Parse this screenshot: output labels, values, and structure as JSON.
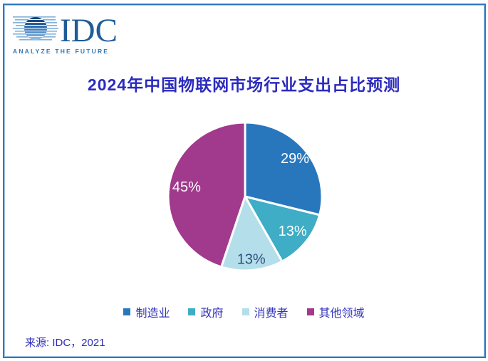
{
  "page": {
    "background": "#ffffff",
    "border_color": "#2E77BE"
  },
  "logo": {
    "name": "IDC",
    "tagline": "ANALYZE THE FUTURE",
    "text_color": "#1F5C99",
    "tagline_color": "#2E79B8"
  },
  "title": {
    "text": "2024年中国物联网市场行业支出占比预测",
    "color": "#2B2BBD"
  },
  "source": {
    "text": "来源: IDC，2021"
  },
  "chart_data": {
    "type": "pie",
    "title": "2024年中国物联网市场行业支出占比预测",
    "categories": [
      "制造业",
      "政府",
      "消费者",
      "其他领域"
    ],
    "values": [
      29,
      13,
      13,
      45
    ],
    "labels": [
      "29%",
      "13%",
      "13%",
      "45%"
    ],
    "colors": [
      "#2877BD",
      "#3EADC5",
      "#B4DFEA",
      "#A1398D"
    ],
    "label_colors": [
      "#ffffff",
      "#ffffff",
      "#2F4E7E",
      "#ffffff"
    ],
    "label_radius": [
      0.82,
      0.78,
      0.86,
      0.77
    ],
    "start_angle_deg": 0,
    "direction": "clockwise",
    "slice_gap_stroke": "#ffffff",
    "legend_position": "bottom",
    "legend_text_color": "#3434BC",
    "source": "来源: IDC，2021"
  }
}
